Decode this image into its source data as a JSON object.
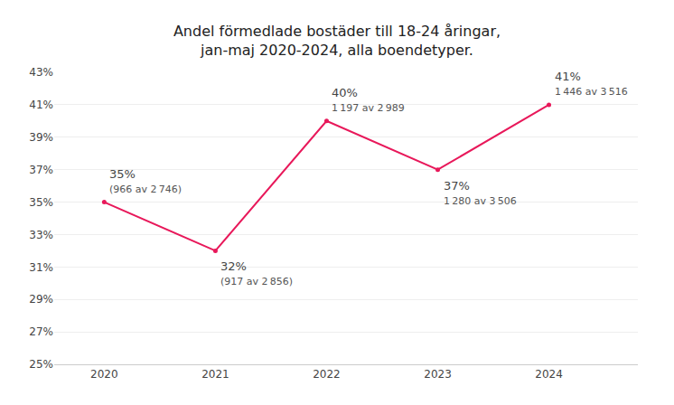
{
  "chart_data": {
    "type": "line",
    "title": "Andel förmedlade bostäder till 18-24 åringar,\njan-maj 2020-2024, alla boendetyper.",
    "x": [
      2020,
      2021,
      2022,
      2023,
      2024
    ],
    "values": [
      35,
      32,
      40,
      37,
      41
    ],
    "value_labels": [
      "35%",
      "32%",
      "40%",
      "37%",
      "41%"
    ],
    "data_labels": true,
    "color": "#e8185a",
    "marker": "circle",
    "xlim": [
      2019.55,
      2024.8
    ],
    "xticks": [
      2020,
      2021,
      2022,
      2023,
      2024
    ],
    "ylim": [
      25,
      43
    ],
    "yticks": [
      {
        "value": 25,
        "label": "25%"
      },
      {
        "value": 27,
        "label": "27%"
      },
      {
        "value": 29,
        "label": "29%"
      },
      {
        "value": 31,
        "label": "31%"
      },
      {
        "value": 33,
        "label": "33%"
      },
      {
        "value": 35,
        "label": "35%"
      },
      {
        "value": 37,
        "label": "37%"
      },
      {
        "value": 39,
        "label": "39%"
      },
      {
        "value": 41,
        "label": "41%"
      },
      {
        "value": 43,
        "label": "43%"
      }
    ],
    "grid": true,
    "annotations": [
      {
        "x": 2020,
        "text": "(966 av 2 746)"
      },
      {
        "x": 2021,
        "text": "(917 av 2 856)"
      },
      {
        "x": 2022,
        "text": "1 197 av 2 989"
      },
      {
        "x": 2023,
        "text": "1 280 av 3 506"
      },
      {
        "x": 2024,
        "text": "1 446 av 3 516"
      }
    ]
  }
}
